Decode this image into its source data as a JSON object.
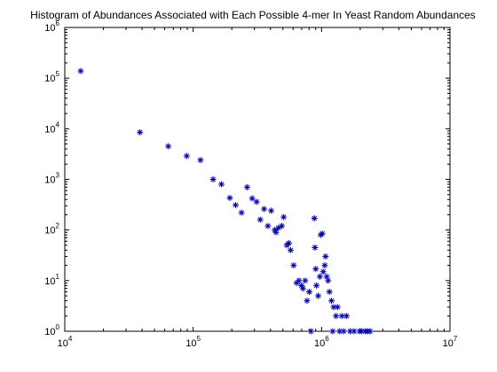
{
  "chart_data": {
    "type": "scatter",
    "title": "Histogram of Abundances Associated with Each Possible 4-mer In Yeast Random Abundances",
    "xlabel": "",
    "ylabel": "",
    "xscale": "log",
    "yscale": "log",
    "xlim": [
      10000,
      10000000
    ],
    "ylim": [
      1,
      1000000
    ],
    "xticks": [
      {
        "base": "10",
        "exp": "4",
        "value": 10000
      },
      {
        "base": "10",
        "exp": "5",
        "value": 100000
      },
      {
        "base": "10",
        "exp": "6",
        "value": 1000000
      },
      {
        "base": "10",
        "exp": "7",
        "value": 10000000
      }
    ],
    "yticks": [
      {
        "base": "10",
        "exp": "0",
        "value": 1
      },
      {
        "base": "10",
        "exp": "1",
        "value": 10
      },
      {
        "base": "10",
        "exp": "2",
        "value": 100
      },
      {
        "base": "10",
        "exp": "3",
        "value": 1000
      },
      {
        "base": "10",
        "exp": "4",
        "value": 10000
      },
      {
        "base": "10",
        "exp": "5",
        "value": 100000
      },
      {
        "base": "10",
        "exp": "6",
        "value": 1000000
      }
    ],
    "grid": false,
    "marker": "asterisk",
    "marker_color": "#0000cc",
    "series": [
      {
        "x": [
          13300,
          38500,
          64000,
          89000,
          114000,
          143000,
          166000,
          193000,
          214000,
          238000,
          263000,
          288000,
          312000,
          333000,
          357000,
          382000,
          405000,
          432000,
          442000,
          461000,
          490000,
          507000,
          536000,
          556000,
          574000,
          606000,
          639000,
          667000,
          697000,
          717000,
          745000,
          770000,
          802000,
          827000,
          879000,
          888000,
          901000,
          913000,
          941000,
          970000,
          985000,
          1013000,
          1030000,
          1059000,
          1074000,
          1096000,
          1124000,
          1151000,
          1195000,
          1221000,
          1242000,
          1296000,
          1331000,
          1384000,
          1439000,
          1485000,
          1563000,
          1669000,
          1794000,
          1976000,
          2049000,
          2177000,
          2271000,
          2389000
        ],
        "y": [
          138000,
          8500,
          4500,
          2900,
          2400,
          1000,
          800,
          430,
          310,
          220,
          700,
          420,
          360,
          160,
          260,
          120,
          240,
          100,
          90,
          110,
          120,
          180,
          50,
          55,
          40,
          20,
          9,
          10,
          8,
          7,
          10,
          4,
          6,
          1,
          170,
          45,
          17,
          8,
          5,
          12,
          80,
          85,
          15,
          20,
          30,
          12,
          10,
          6,
          4,
          1,
          3,
          2,
          3,
          1,
          2,
          1,
          2,
          1,
          1,
          1,
          1,
          1,
          1,
          1
        ]
      }
    ]
  }
}
